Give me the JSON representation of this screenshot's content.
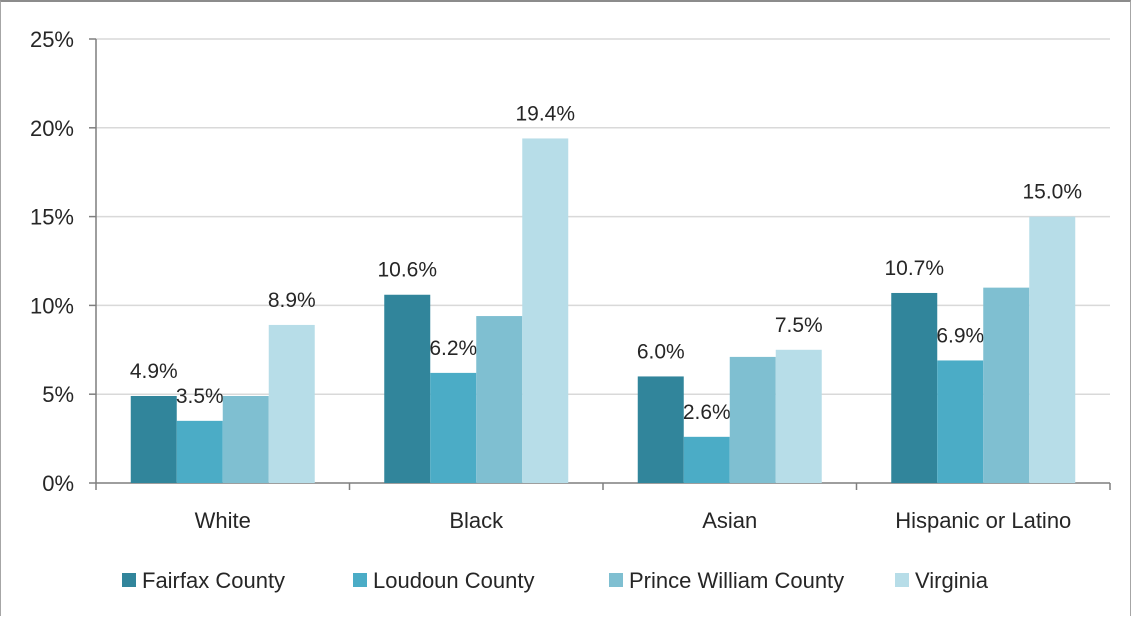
{
  "chart_data": {
    "type": "bar",
    "categories": [
      "White",
      "Black",
      "Asian",
      "Hispanic or Latino"
    ],
    "series": [
      {
        "name": "Fairfax County",
        "color": "#31859b",
        "values": [
          4.9,
          10.6,
          6.0,
          10.7
        ]
      },
      {
        "name": "Loudoun County",
        "color": "#4bacc6",
        "values": [
          3.5,
          6.2,
          2.6,
          6.9
        ]
      },
      {
        "name": "Prince William County",
        "color": "#7fbfd1",
        "values": [
          4.9,
          9.4,
          7.1,
          11.0
        ]
      },
      {
        "name": "Virginia",
        "color": "#b7dde8",
        "values": [
          8.9,
          19.4,
          7.5,
          15.0
        ]
      }
    ],
    "data_labels": [
      [
        "4.9%",
        "3.5%",
        null,
        "8.9%"
      ],
      [
        "10.6%",
        "6.2%",
        null,
        "19.4%"
      ],
      [
        "6.0%",
        "2.6%",
        null,
        "7.5%"
      ],
      [
        "10.7%",
        "6.9%",
        null,
        "15.0%"
      ]
    ],
    "yticks": [
      "0%",
      "5%",
      "10%",
      "15%",
      "20%",
      "25%"
    ],
    "ylim": [
      0,
      25
    ],
    "grid": true,
    "legend_position": "bottom"
  }
}
